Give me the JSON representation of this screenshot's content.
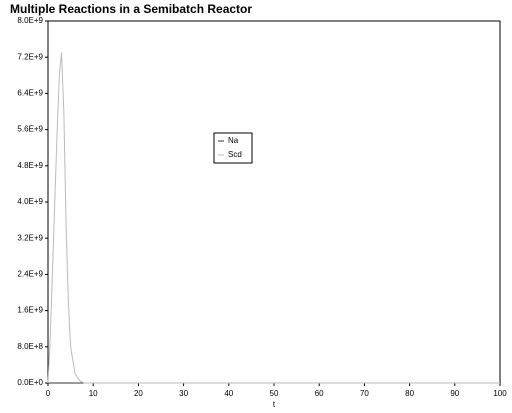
{
  "chart_data": {
    "type": "line",
    "title": "Multiple Reactions in a Semibatch Reactor",
    "x_label": "t",
    "x": [
      0,
      0.5,
      1,
      1.5,
      2,
      2.5,
      3,
      3.5,
      4,
      4.5,
      5,
      6,
      7,
      8,
      10,
      20,
      40,
      60,
      80,
      100
    ],
    "series": [
      {
        "name": "Na",
        "color": "#333333",
        "values": [
          0,
          0,
          0,
          0,
          0,
          0,
          0,
          0,
          0,
          0,
          0,
          0,
          0,
          0,
          0,
          0,
          0,
          0,
          0,
          0
        ]
      },
      {
        "name": "Scd",
        "color": "#bbbbbb",
        "values": [
          0,
          1000000000,
          2500000000,
          4000000000,
          5500000000,
          6800000000,
          7300000000,
          6000000000,
          3500000000,
          1800000000,
          800000000,
          200000000,
          50000000,
          0,
          0,
          0,
          0,
          0,
          0,
          0
        ]
      }
    ],
    "xlim": [
      0,
      100
    ],
    "xticks": [
      0,
      10,
      20,
      30,
      40,
      50,
      60,
      70,
      80,
      90,
      100
    ],
    "ylim": [
      0,
      8000000000
    ],
    "yticks": [
      {
        "value": 0,
        "label": "0.0E+0"
      },
      {
        "value": 800000000,
        "label": "8.0E+8"
      },
      {
        "value": 1600000000,
        "label": "1.6E+9"
      },
      {
        "value": 2400000000,
        "label": "2.4E+9"
      },
      {
        "value": 3200000000,
        "label": "3.2E+9"
      },
      {
        "value": 4000000000,
        "label": "4.0E+9"
      },
      {
        "value": 4800000000,
        "label": "4.8E+9"
      },
      {
        "value": 5600000000,
        "label": "5.6E+9"
      },
      {
        "value": 6400000000,
        "label": "6.4E+9"
      },
      {
        "value": 7200000000,
        "label": "7.2E+9"
      },
      {
        "value": 8000000000,
        "label": "8.0E+9"
      }
    ],
    "grid": false
  }
}
